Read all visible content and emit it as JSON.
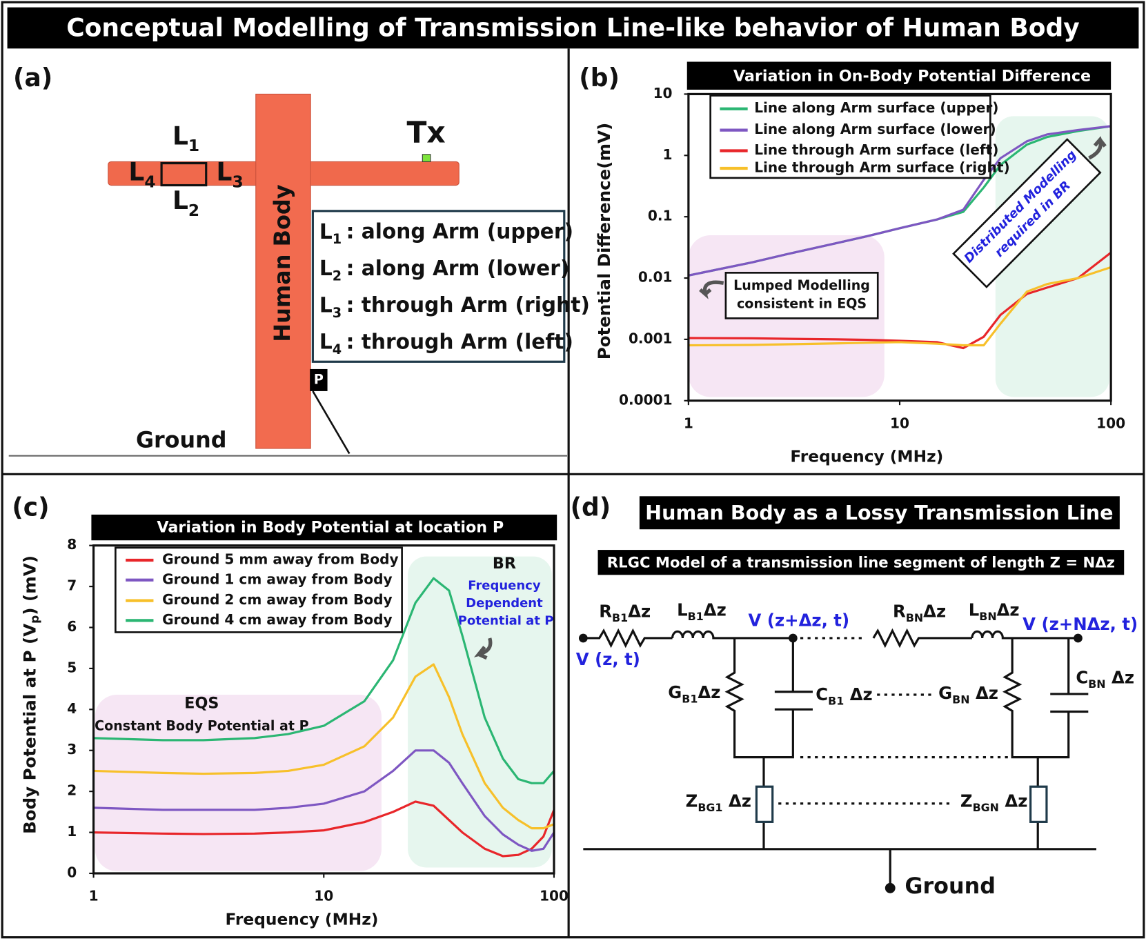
{
  "title": "Conceptual Modelling of Transmission Line-like behavior of Human Body",
  "panel_a": {
    "label": "(a)",
    "tx": "Tx",
    "body": "Human Body",
    "point": "P",
    "ground": "Ground",
    "segments": [
      {
        "base": "L",
        "sub": "1"
      },
      {
        "base": "L",
        "sub": "2"
      },
      {
        "base": "L",
        "sub": "3"
      },
      {
        "base": "L",
        "sub": "4"
      }
    ],
    "legend": [
      {
        "base": "L",
        "sub": "1",
        "text": ": along Arm (upper)"
      },
      {
        "base": "L",
        "sub": "2",
        "text": ": along Arm (lower)"
      },
      {
        "base": "L",
        "sub": "3",
        "text": ": through Arm (right)"
      },
      {
        "base": "L",
        "sub": "4",
        "text": ": through Arm (left)"
      }
    ]
  },
  "chart_data": [
    {
      "type": "line",
      "panel": "(b)",
      "title": "Variation in On-Body Potential Difference",
      "xlabel": "Frequency (MHz)",
      "ylabel": "Potential Difference(mV)",
      "log_x": true,
      "log_y": true,
      "xlim": [
        1,
        100
      ],
      "ylim": [
        0.0001,
        10
      ],
      "xticks": [
        1,
        10,
        100
      ],
      "yticks": [
        0.0001,
        0.001,
        0.01,
        0.1,
        1,
        10
      ],
      "grid": false,
      "annotations": [
        [
          "Lumped Modelling",
          "consistent in EQS"
        ],
        [
          "Distributed Modelling",
          "required in BR"
        ]
      ],
      "x": [
        1,
        2,
        3,
        5,
        7,
        10,
        15,
        20,
        25,
        30,
        40,
        50,
        70,
        100
      ],
      "series": [
        {
          "name": "Line along Arm surface (upper)",
          "color": "#2bb673",
          "values": [
            0.011,
            0.018,
            0.025,
            0.037,
            0.048,
            0.065,
            0.09,
            0.12,
            0.3,
            0.7,
            1.5,
            2.0,
            2.5,
            3.0
          ]
        },
        {
          "name": "Line along Arm surface (lower)",
          "color": "#7e57c2",
          "values": [
            0.011,
            0.018,
            0.025,
            0.037,
            0.048,
            0.065,
            0.09,
            0.13,
            0.4,
            0.9,
            1.7,
            2.2,
            2.6,
            3.0
          ]
        },
        {
          "name": "Line through Arm surface (left)",
          "color": "#e8262a",
          "values": [
            0.00105,
            0.00104,
            0.00102,
            0.001,
            0.00098,
            0.00095,
            0.0009,
            0.00072,
            0.0011,
            0.0025,
            0.0055,
            0.007,
            0.01,
            0.026
          ]
        },
        {
          "name": "Line through Arm surface (right)",
          "color": "#f7c02a",
          "values": [
            0.0008,
            0.00081,
            0.00083,
            0.00086,
            0.00088,
            0.0009,
            0.00085,
            0.0008,
            0.0008,
            0.0018,
            0.006,
            0.008,
            0.01,
            0.015
          ]
        }
      ]
    },
    {
      "type": "line",
      "panel": "(c)",
      "title": "Variation in Body Potential at location P",
      "xlabel": "Frequency (MHz)",
      "ylabel": {
        "pre": "Body Potential at P (V",
        "sub": "p",
        "post": ") (mV)"
      },
      "log_x": true,
      "log_y": false,
      "xlim": [
        1,
        100
      ],
      "ylim": [
        0,
        8
      ],
      "xticks": [
        1,
        10,
        100
      ],
      "yticks": [
        0,
        1,
        2,
        3,
        4,
        5,
        6,
        7,
        8
      ],
      "grid": false,
      "annotations": [
        "EQS",
        "Constant Body Potential at P",
        "BR",
        "Frequency",
        "Dependent",
        "Potential at P"
      ],
      "x": [
        1,
        2,
        3,
        5,
        7,
        10,
        15,
        20,
        25,
        30,
        35,
        40,
        50,
        60,
        70,
        80,
        90,
        100
      ],
      "series": [
        {
          "name": "Ground 5 mm away from Body",
          "color": "#e8262a",
          "values": [
            1.0,
            0.97,
            0.96,
            0.97,
            1.0,
            1.05,
            1.25,
            1.5,
            1.75,
            1.65,
            1.3,
            1.0,
            0.6,
            0.42,
            0.45,
            0.6,
            0.9,
            1.55
          ]
        },
        {
          "name": "Ground 1 cm away from Body",
          "color": "#7e57c2",
          "values": [
            1.6,
            1.55,
            1.55,
            1.55,
            1.6,
            1.7,
            2.0,
            2.5,
            3.0,
            3.0,
            2.7,
            2.2,
            1.4,
            0.95,
            0.7,
            0.55,
            0.6,
            1.0
          ]
        },
        {
          "name": "Ground 2 cm away from Body",
          "color": "#f7c02a",
          "values": [
            2.5,
            2.45,
            2.43,
            2.45,
            2.5,
            2.65,
            3.1,
            3.8,
            4.8,
            5.1,
            4.3,
            3.4,
            2.2,
            1.6,
            1.3,
            1.1,
            1.1,
            1.2
          ]
        },
        {
          "name": "Ground 4 cm away from Body",
          "color": "#2bb673",
          "values": [
            3.3,
            3.25,
            3.25,
            3.3,
            3.4,
            3.6,
            4.2,
            5.2,
            6.6,
            7.2,
            6.9,
            5.8,
            3.8,
            2.8,
            2.3,
            2.2,
            2.2,
            2.5
          ]
        }
      ]
    }
  ],
  "panel_d": {
    "label": "(d)",
    "title": "Human Body as a Lossy Transmission Line",
    "subtitle": "RLGC Model of a transmission line segment of length Z = NΔz",
    "voltages": [
      "V (z+Δz, t)",
      "V (z+NΔz, t)",
      "V (z, t)"
    ],
    "ground": "Ground",
    "elements": [
      {
        "base": "R",
        "sub": "B1",
        "tail": "Δz"
      },
      {
        "base": "L",
        "sub": "B1",
        "tail": "Δz"
      },
      {
        "base": "R",
        "sub": "BN",
        "tail": "Δz"
      },
      {
        "base": "L",
        "sub": "BN",
        "tail": "Δz"
      },
      {
        "base": "G",
        "sub": "B1",
        "tail": "Δz"
      },
      {
        "base": "C",
        "sub": "B1",
        "tail": " Δz"
      },
      {
        "base": "G",
        "sub": "BN",
        "tail": " Δz"
      },
      {
        "base": "C",
        "sub": "BN",
        "tail": " Δz"
      },
      {
        "base": "Z",
        "sub": "BG1",
        "tail": " Δz"
      },
      {
        "base": "Z",
        "sub": "BGN",
        "tail": " Δz"
      }
    ]
  }
}
